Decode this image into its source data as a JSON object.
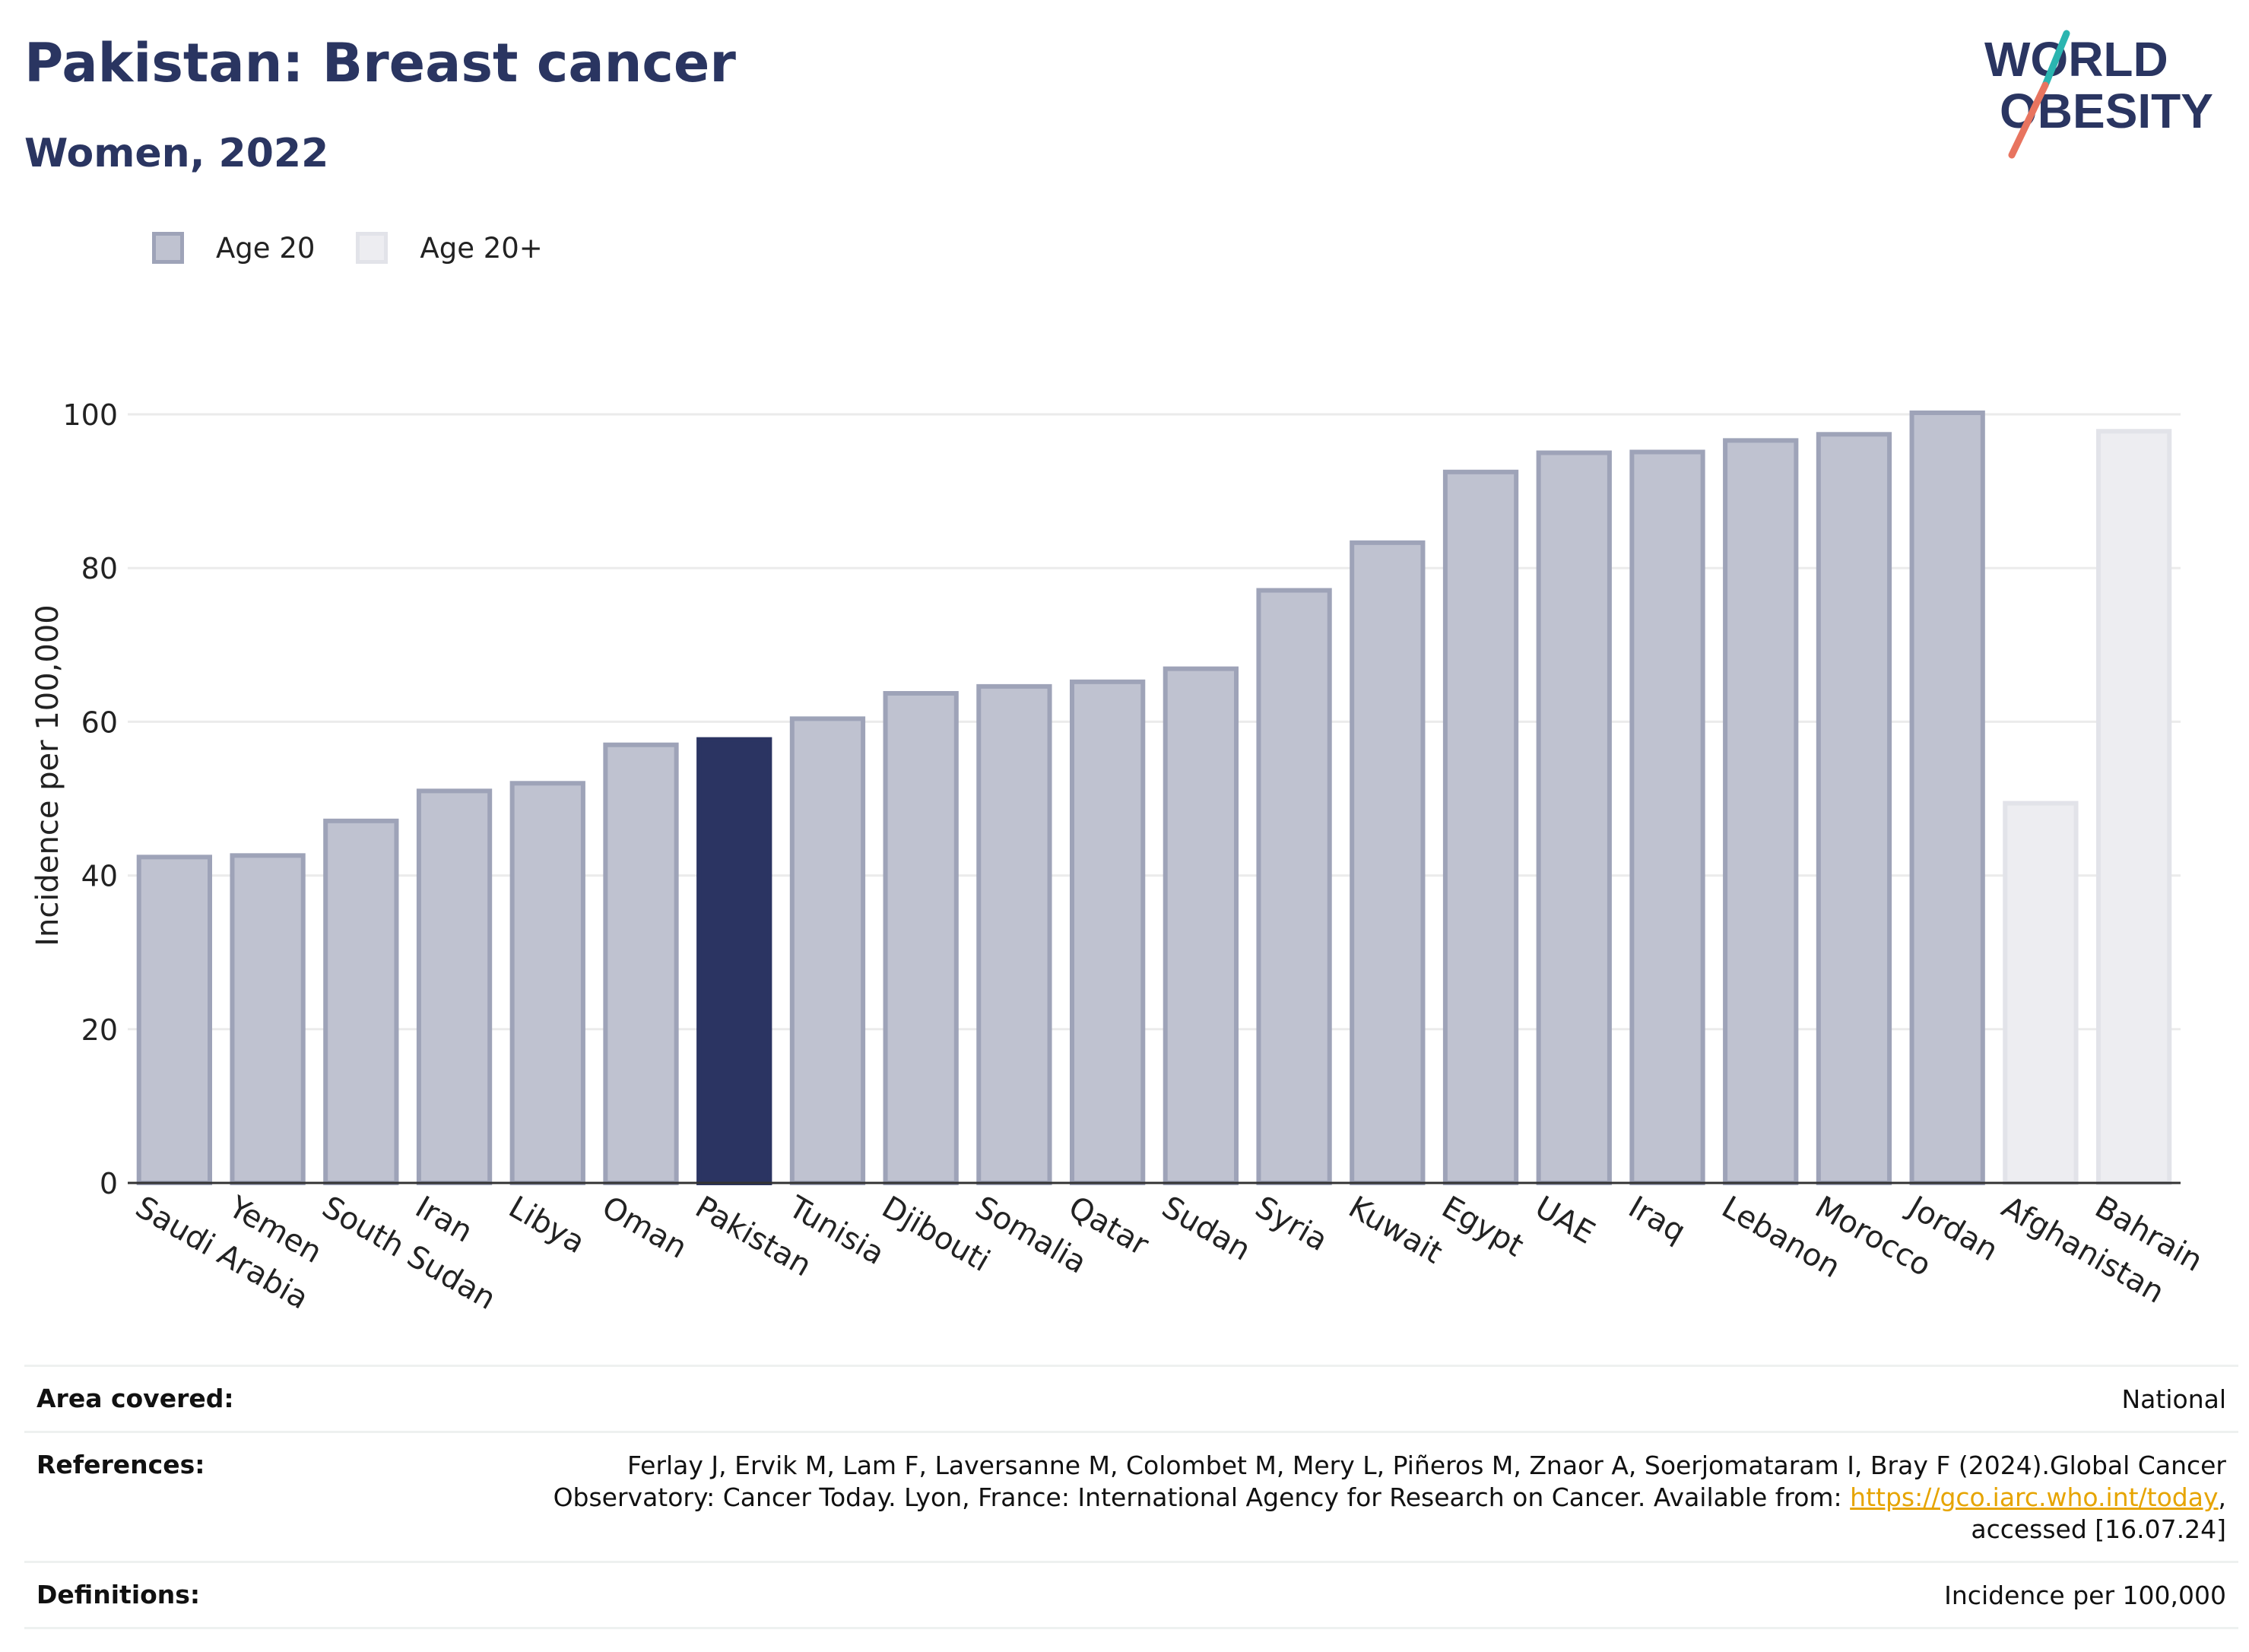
{
  "header": {
    "title": "Pakistan: Breast cancer",
    "subtitle": "Women, 2022"
  },
  "logo": {
    "line1": "WORLD",
    "line2": "OBESITY"
  },
  "colors": {
    "title": "#2a3561",
    "bar_age20_fill": "#bfc2d0",
    "bar_age20_stroke": "#9ea3b8",
    "bar_highlight": "#2b3462",
    "bar_age20plus_fill": "#ededf1",
    "bar_age20plus_stroke": "#e2e3e9",
    "link": "#e6a400"
  },
  "chart_data": {
    "type": "bar",
    "ylabel": "Incidence per 100,000",
    "ylim": [
      0,
      100
    ],
    "yticks": [
      0,
      20,
      40,
      60,
      80,
      100
    ],
    "grid": true,
    "legend_placement": "top-left",
    "legend": [
      {
        "name": "Age 20",
        "swatch": "age20"
      },
      {
        "name": "Age 20+",
        "swatch": "age20plus"
      }
    ],
    "highlight": "Pakistan",
    "categories": [
      "Saudi Arabia",
      "Yemen",
      "South Sudan",
      "Iran",
      "Libya",
      "Oman",
      "Pakistan",
      "Tunisia",
      "Djibouti",
      "Somalia",
      "Qatar",
      "Sudan",
      "Syria",
      "Kuwait",
      "Egypt",
      "UAE",
      "Iraq",
      "Lebanon",
      "Morocco",
      "Jordan",
      "Afghanistan",
      "Bahrain"
    ],
    "series": [
      {
        "name": "Age 20",
        "values": [
          42.4,
          42.6,
          47.1,
          51.0,
          52.0,
          57.0,
          57.7,
          60.4,
          63.7,
          64.6,
          65.2,
          66.9,
          77.1,
          83.3,
          92.5,
          95.0,
          95.1,
          96.6,
          97.4,
          100.2,
          null,
          null
        ]
      },
      {
        "name": "Age 20+",
        "values": [
          null,
          null,
          null,
          null,
          null,
          null,
          null,
          null,
          null,
          null,
          null,
          null,
          null,
          null,
          null,
          null,
          null,
          null,
          null,
          null,
          49.4,
          97.8
        ]
      }
    ]
  },
  "info": {
    "area_label": "Area covered:",
    "area_value": "National",
    "references_label": "References:",
    "references_line1": "Ferlay J, Ervik M, Lam F, Laversanne M, Colombet M, Mery L, Piñeros M, Znaor A, Soerjomataram I, Bray F (2024).Global Cancer",
    "references_line2_pre": "Observatory: Cancer Today. Lyon, France: International Agency for Research on Cancer. Available from: ",
    "references_link": "https://gco.iarc.who.int/today",
    "references_line2_post": ",",
    "references_line3": "accessed [16.07.24]",
    "definitions_label": "Definitions:",
    "definitions_value": "Incidence per 100,000"
  }
}
